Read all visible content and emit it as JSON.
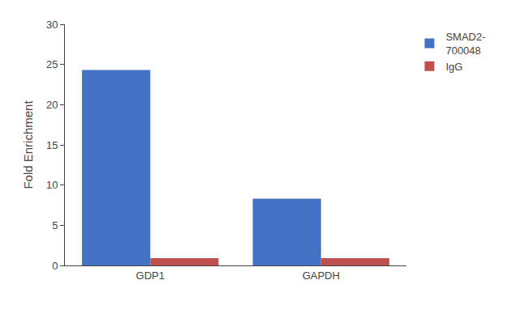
{
  "chart_data": {
    "type": "bar",
    "categories": [
      "GDP1",
      "GAPDH"
    ],
    "series": [
      {
        "name": "SMAD2-\n700048",
        "color": "#4472C4",
        "values": [
          24.3,
          8.3
        ]
      },
      {
        "name": "IgG",
        "color": "#C0504D",
        "values": [
          0.9,
          0.9
        ]
      }
    ],
    "ylabel": "Fold Enrichment",
    "ylim": [
      0,
      30
    ],
    "yticks": [
      0,
      5,
      10,
      15,
      20,
      25,
      30
    ],
    "grid": false,
    "legend": "upper right"
  }
}
